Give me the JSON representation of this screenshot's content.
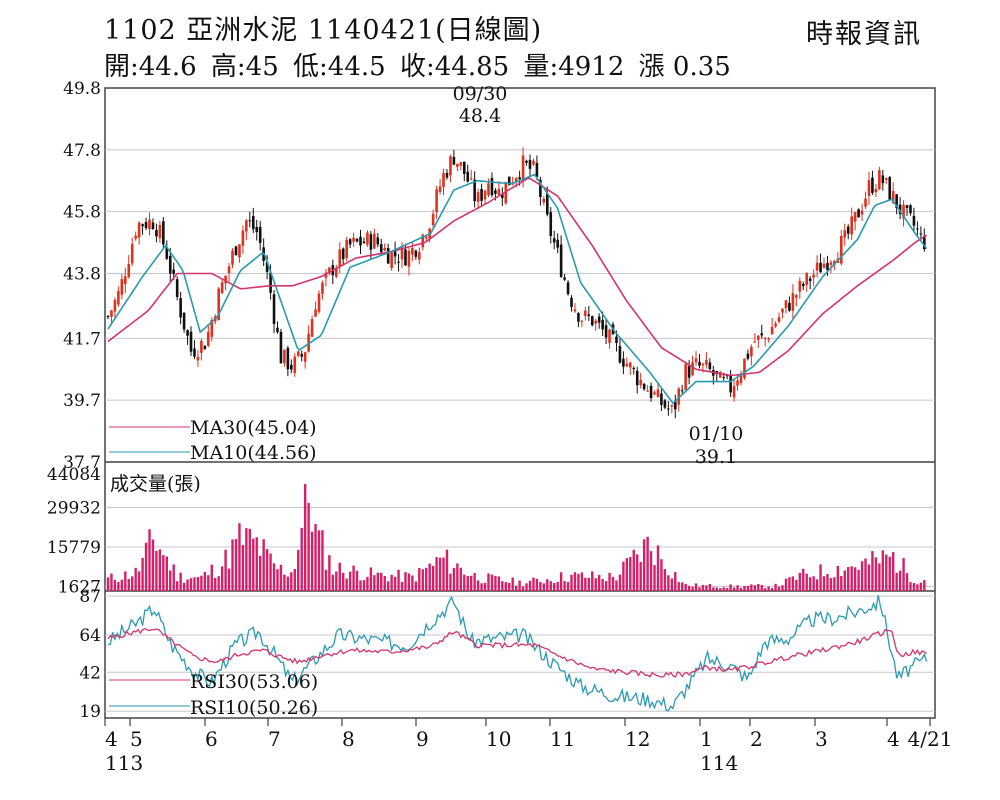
{
  "header": {
    "title": "1102 亞洲水泥 1140421(日線圖)",
    "source": "時報資訊",
    "ohlc": {
      "open": "開:44.6",
      "high": "高:45",
      "low": "低:44.5",
      "close": "收:44.85",
      "volume": "量:4912",
      "change": "漲 0.35"
    }
  },
  "chart_data": [
    {
      "type": "candlestick",
      "ylim": [
        37.7,
        49.8
      ],
      "yticks": [
        "49.8",
        "47.8",
        "45.8",
        "43.8",
        "41.7",
        "39.7",
        "37.7"
      ],
      "ytick_values": [
        49.8,
        47.8,
        45.8,
        43.8,
        41.7,
        39.7,
        37.7
      ],
      "legend": [
        {
          "name": "MA30(45.04)",
          "color": "#d6336c"
        },
        {
          "name": "MA10(44.56)",
          "color": "#2a9ab0"
        }
      ],
      "annotations": [
        {
          "date": "09/30",
          "value": "48.4"
        },
        {
          "date": "01/10",
          "value": "39.1"
        }
      ],
      "price_path": [
        [
          0,
          42.4
        ],
        [
          10,
          43.2
        ],
        [
          25,
          45.4
        ],
        [
          40,
          45.5
        ],
        [
          50,
          44.6
        ],
        [
          60,
          43.0
        ],
        [
          72,
          41.3
        ],
        [
          85,
          41.6
        ],
        [
          95,
          43.0
        ],
        [
          110,
          44.6
        ],
        [
          120,
          45.5
        ],
        [
          130,
          45.1
        ],
        [
          140,
          43.4
        ],
        [
          150,
          41.1
        ],
        [
          160,
          40.8
        ],
        [
          170,
          41.2
        ],
        [
          180,
          42.9
        ],
        [
          195,
          44.0
        ],
        [
          210,
          44.7
        ],
        [
          230,
          44.9
        ],
        [
          245,
          44.4
        ],
        [
          260,
          44.4
        ],
        [
          270,
          44.8
        ],
        [
          280,
          45.6
        ],
        [
          290,
          46.9
        ],
        [
          300,
          47.6
        ],
        [
          310,
          47.0
        ],
        [
          320,
          46.1
        ],
        [
          330,
          46.8
        ],
        [
          340,
          46.4
        ],
        [
          350,
          46.9
        ],
        [
          360,
          47.3
        ],
        [
          370,
          47.1
        ],
        [
          380,
          45.6
        ],
        [
          390,
          44.4
        ],
        [
          400,
          43.1
        ],
        [
          410,
          42.4
        ],
        [
          420,
          42.3
        ],
        [
          430,
          41.9
        ],
        [
          440,
          41.4
        ],
        [
          450,
          40.9
        ],
        [
          460,
          40.4
        ],
        [
          470,
          40.0
        ],
        [
          480,
          39.6
        ],
        [
          490,
          39.3
        ],
        [
          500,
          40.6
        ],
        [
          510,
          40.8
        ],
        [
          520,
          40.7
        ],
        [
          530,
          40.3
        ],
        [
          540,
          40.1
        ],
        [
          550,
          40.8
        ],
        [
          560,
          41.6
        ],
        [
          570,
          41.7
        ],
        [
          580,
          42.3
        ],
        [
          590,
          42.8
        ],
        [
          600,
          43.3
        ],
        [
          610,
          43.7
        ],
        [
          620,
          44.1
        ],
        [
          630,
          44.5
        ],
        [
          640,
          44.9
        ],
        [
          650,
          45.7
        ],
        [
          660,
          46.6
        ],
        [
          670,
          46.9
        ],
        [
          680,
          46.3
        ],
        [
          690,
          45.7
        ],
        [
          700,
          45.3
        ],
        [
          705,
          44.9
        ],
        [
          710,
          44.8
        ]
      ],
      "ma10": [
        [
          0,
          42.0
        ],
        [
          30,
          43.7
        ],
        [
          50,
          44.7
        ],
        [
          65,
          43.9
        ],
        [
          80,
          41.9
        ],
        [
          95,
          42.4
        ],
        [
          115,
          43.9
        ],
        [
          135,
          44.5
        ],
        [
          150,
          42.9
        ],
        [
          165,
          41.3
        ],
        [
          185,
          41.8
        ],
        [
          210,
          44.0
        ],
        [
          245,
          44.5
        ],
        [
          280,
          45.1
        ],
        [
          300,
          46.5
        ],
        [
          320,
          46.8
        ],
        [
          350,
          46.7
        ],
        [
          370,
          47.0
        ],
        [
          390,
          45.9
        ],
        [
          410,
          43.5
        ],
        [
          440,
          41.9
        ],
        [
          470,
          40.6
        ],
        [
          490,
          39.6
        ],
        [
          510,
          40.3
        ],
        [
          540,
          40.3
        ],
        [
          560,
          40.8
        ],
        [
          590,
          42.1
        ],
        [
          620,
          43.7
        ],
        [
          650,
          44.9
        ],
        [
          665,
          46.0
        ],
        [
          680,
          46.2
        ],
        [
          700,
          45.1
        ],
        [
          710,
          44.6
        ]
      ],
      "ma30": [
        [
          0,
          41.6
        ],
        [
          35,
          42.6
        ],
        [
          60,
          43.8
        ],
        [
          90,
          43.8
        ],
        [
          115,
          43.3
        ],
        [
          140,
          43.4
        ],
        [
          160,
          43.4
        ],
        [
          185,
          43.7
        ],
        [
          215,
          44.3
        ],
        [
          245,
          44.5
        ],
        [
          275,
          44.8
        ],
        [
          300,
          45.5
        ],
        [
          330,
          46.1
        ],
        [
          365,
          46.9
        ],
        [
          390,
          46.3
        ],
        [
          420,
          44.7
        ],
        [
          450,
          42.9
        ],
        [
          480,
          41.4
        ],
        [
          510,
          40.7
        ],
        [
          540,
          40.5
        ],
        [
          565,
          40.6
        ],
        [
          590,
          41.3
        ],
        [
          620,
          42.5
        ],
        [
          650,
          43.4
        ],
        [
          680,
          44.2
        ],
        [
          700,
          44.8
        ],
        [
          710,
          45.04
        ]
      ]
    },
    {
      "type": "bar",
      "label": "成交量(張)",
      "yticks": [
        "44084",
        "29932",
        "15779",
        "1627"
      ],
      "ytick_values": [
        44084,
        29932,
        15779,
        1627
      ],
      "ylim": [
        0,
        44084
      ],
      "color": "#d61f69",
      "volume_samples": [
        [
          0,
          5200
        ],
        [
          25,
          8000
        ],
        [
          40,
          23000
        ],
        [
          60,
          6500
        ],
        [
          80,
          5500
        ],
        [
          100,
          12000
        ],
        [
          115,
          23000
        ],
        [
          130,
          20000
        ],
        [
          145,
          10000
        ],
        [
          160,
          8000
        ],
        [
          175,
          44084
        ],
        [
          180,
          25000
        ],
        [
          195,
          10000
        ],
        [
          230,
          7000
        ],
        [
          265,
          6000
        ],
        [
          290,
          14000
        ],
        [
          320,
          6000
        ],
        [
          360,
          3500
        ],
        [
          400,
          6500
        ],
        [
          440,
          6000
        ],
        [
          470,
          21000
        ],
        [
          480,
          14000
        ],
        [
          500,
          2500
        ],
        [
          540,
          2000
        ],
        [
          580,
          2200
        ],
        [
          600,
          6500
        ],
        [
          620,
          8500
        ],
        [
          660,
          12000
        ],
        [
          680,
          15000
        ],
        [
          700,
          5000
        ],
        [
          710,
          4912
        ]
      ]
    },
    {
      "type": "line",
      "yticks": [
        "87",
        "64",
        "42",
        "19"
      ],
      "ytick_values": [
        87,
        64,
        42,
        19
      ],
      "ylim": [
        15,
        90
      ],
      "legend": [
        {
          "name": "RSI30(53.06)",
          "color": "#d6336c"
        },
        {
          "name": "RSI10(50.26)",
          "color": "#2a9ab0"
        }
      ],
      "rsi30": [
        [
          0,
          62
        ],
        [
          25,
          66
        ],
        [
          40,
          68
        ],
        [
          60,
          58
        ],
        [
          75,
          51
        ],
        [
          95,
          48
        ],
        [
          115,
          53
        ],
        [
          135,
          55
        ],
        [
          150,
          51
        ],
        [
          165,
          48
        ],
        [
          185,
          52
        ],
        [
          210,
          55
        ],
        [
          245,
          54
        ],
        [
          280,
          57
        ],
        [
          300,
          66
        ],
        [
          320,
          58
        ],
        [
          345,
          58
        ],
        [
          370,
          58
        ],
        [
          390,
          52
        ],
        [
          420,
          44
        ],
        [
          450,
          42
        ],
        [
          480,
          40
        ],
        [
          500,
          41
        ],
        [
          520,
          45
        ],
        [
          540,
          43
        ],
        [
          560,
          46
        ],
        [
          590,
          51
        ],
        [
          620,
          55
        ],
        [
          650,
          60
        ],
        [
          670,
          65
        ],
        [
          680,
          67
        ],
        [
          685,
          52
        ],
        [
          700,
          54
        ],
        [
          710,
          53.06
        ]
      ],
      "rsi10": [
        [
          0,
          60
        ],
        [
          25,
          71
        ],
        [
          40,
          80
        ],
        [
          55,
          58
        ],
        [
          75,
          42
        ],
        [
          90,
          36
        ],
        [
          110,
          58
        ],
        [
          130,
          66
        ],
        [
          145,
          52
        ],
        [
          160,
          36
        ],
        [
          180,
          50
        ],
        [
          200,
          64
        ],
        [
          230,
          61
        ],
        [
          260,
          58
        ],
        [
          280,
          72
        ],
        [
          300,
          84
        ],
        [
          315,
          60
        ],
        [
          335,
          62
        ],
        [
          360,
          64
        ],
        [
          385,
          48
        ],
        [
          410,
          34
        ],
        [
          440,
          28
        ],
        [
          470,
          26
        ],
        [
          490,
          22
        ],
        [
          505,
          36
        ],
        [
          520,
          50
        ],
        [
          540,
          46
        ],
        [
          555,
          38
        ],
        [
          570,
          60
        ],
        [
          590,
          62
        ],
        [
          610,
          73
        ],
        [
          630,
          74
        ],
        [
          650,
          78
        ],
        [
          670,
          84
        ],
        [
          685,
          38
        ],
        [
          695,
          44
        ],
        [
          710,
          50.26
        ]
      ]
    },
    {
      "type": "axis",
      "months": [
        {
          "label": "4",
          "pos": 0
        },
        {
          "label": "5",
          "pos": 25
        },
        {
          "label": "6",
          "pos": 100
        },
        {
          "label": "7",
          "pos": 163
        },
        {
          "label": "8",
          "pos": 237
        },
        {
          "label": "9",
          "pos": 311
        },
        {
          "label": "10",
          "pos": 381
        },
        {
          "label": "11",
          "pos": 445
        },
        {
          "label": "12",
          "pos": 520
        },
        {
          "label": "1",
          "pos": 595
        },
        {
          "label": "2",
          "pos": 645
        },
        {
          "label": "3",
          "pos": 710
        },
        {
          "label": "4",
          "pos": 782
        },
        {
          "label": "4/21",
          "pos": 825
        }
      ],
      "years": [
        {
          "label": "113",
          "pos": 0
        },
        {
          "label": "114",
          "pos": 595
        }
      ]
    }
  ]
}
